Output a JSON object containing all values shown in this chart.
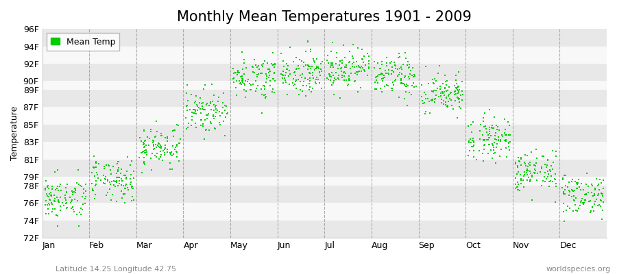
{
  "title": "Monthly Mean Temperatures 1901 - 2009",
  "ylabel": "Temperature",
  "xlabel": "",
  "subtitle_left": "Latitude 14.25 Longitude 42.75",
  "subtitle_right": "worldspecies.org",
  "legend_label": "Mean Temp",
  "dot_color": "#00cc00",
  "background_color": "#ffffff",
  "band_color_1": "#e8e8e8",
  "band_color_2": "#f8f8f8",
  "ytick_labels": [
    "72F",
    "74F",
    "76F",
    "78F",
    "79F",
    "81F",
    "83F",
    "85F",
    "87F",
    "89F",
    "90F",
    "92F",
    "94F",
    "96F"
  ],
  "ytick_values": [
    72,
    74,
    76,
    78,
    79,
    81,
    83,
    85,
    87,
    89,
    90,
    92,
    94,
    96
  ],
  "ylim": [
    72,
    96
  ],
  "month_names": [
    "Jan",
    "Feb",
    "Mar",
    "Apr",
    "May",
    "Jun",
    "Jul",
    "Aug",
    "Sep",
    "Oct",
    "Nov",
    "Dec"
  ],
  "title_fontsize": 15,
  "axis_fontsize": 9,
  "tick_fontsize": 9,
  "dot_size": 3,
  "monthly_means": [
    76.5,
    78.5,
    82.5,
    86.5,
    90.5,
    91.0,
    91.5,
    90.5,
    88.5,
    83.5,
    79.5,
    77.0
  ],
  "monthly_stds": [
    1.2,
    1.2,
    1.2,
    1.2,
    1.2,
    1.2,
    1.2,
    1.2,
    1.2,
    1.2,
    1.2,
    1.2
  ],
  "num_years": 109,
  "seed": 42
}
